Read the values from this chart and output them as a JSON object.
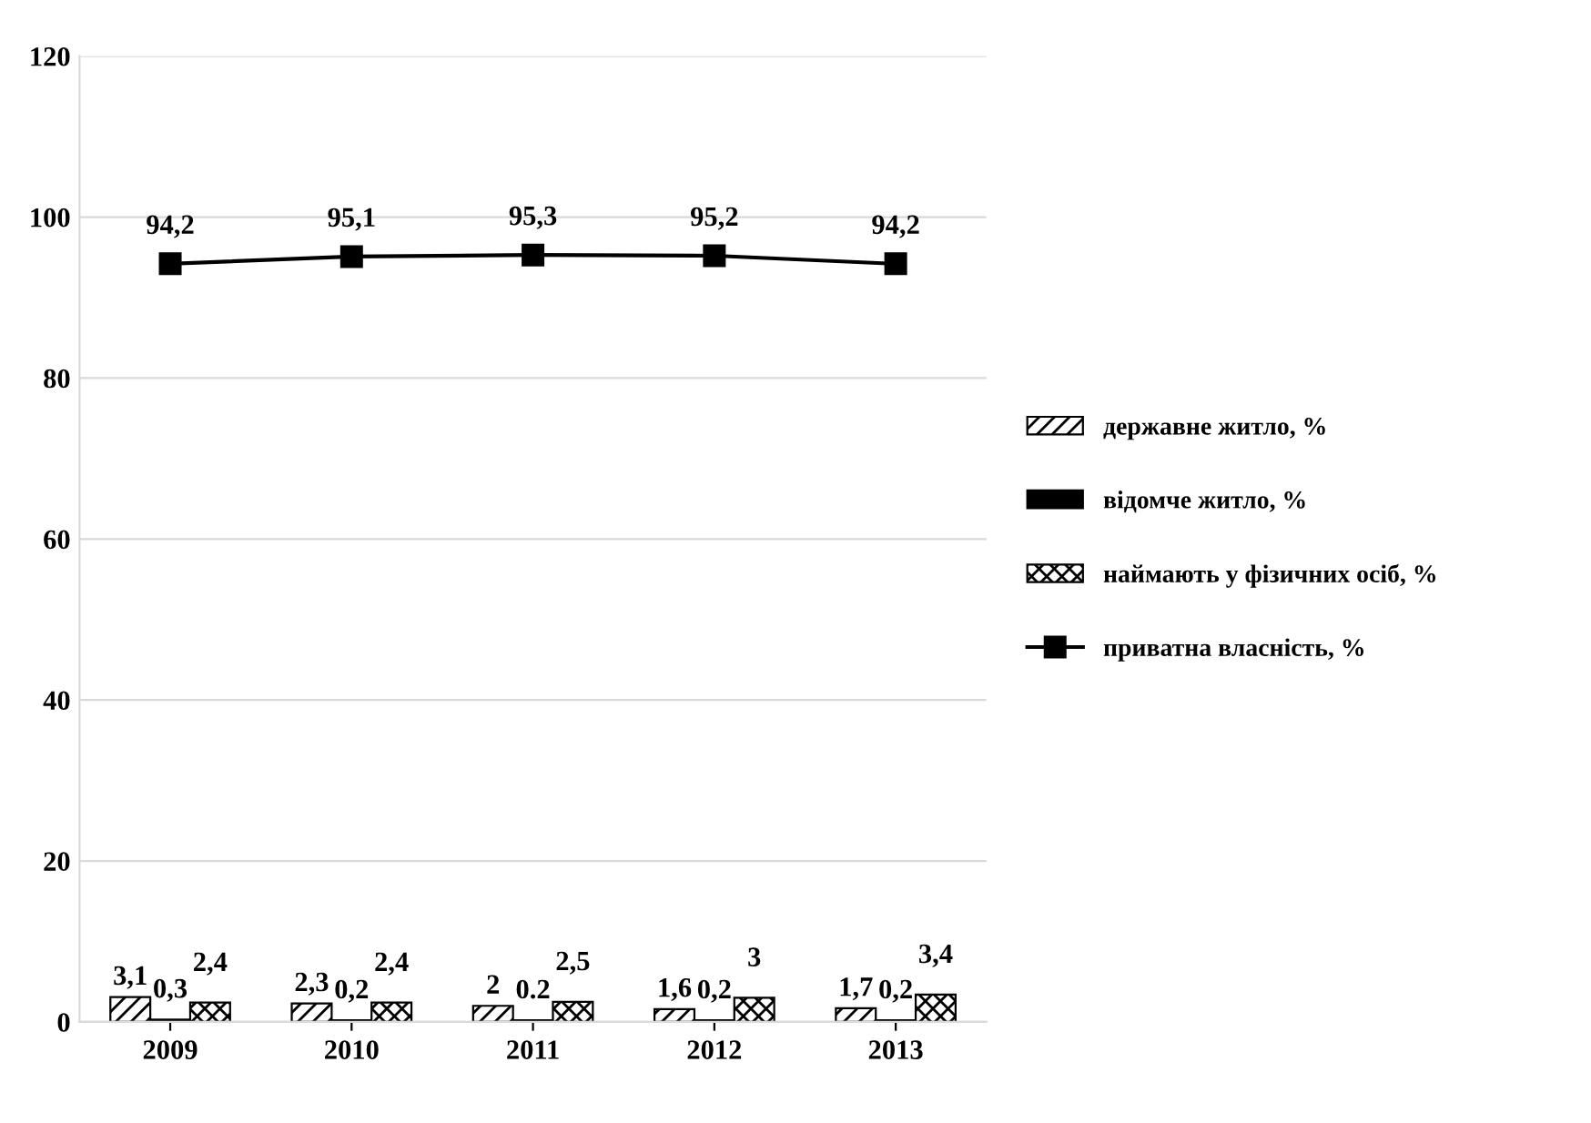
{
  "chart_data": {
    "type": "bar",
    "categories": [
      "2009",
      "2010",
      "2011",
      "2012",
      "2013"
    ],
    "series": [
      {
        "name": "державне житло, %",
        "color": "#000000",
        "values": [
          3.1,
          2.3,
          2,
          1.6,
          1.7
        ],
        "value_labels": [
          "3,1",
          "2,3",
          "2",
          "1,6",
          "1,7"
        ]
      },
      {
        "name": "відомче житло, %",
        "color": "#000000",
        "values": [
          0.3,
          0.2,
          0.2,
          0.2,
          0.2
        ],
        "value_labels": [
          "0,3",
          "0,2",
          "0.2",
          "0,2",
          "0,2"
        ]
      },
      {
        "name": "наймають у фізичних осіб, %",
        "color": "#000000",
        "values": [
          2.4,
          2.4,
          2.5,
          3,
          3.4
        ],
        "value_labels": [
          "2,4",
          "2,4",
          "2,5",
          "3",
          "3,4"
        ]
      },
      {
        "name": "приватна власність, %",
        "type": "line",
        "color": "#000000",
        "marker": "square",
        "values": [
          94.2,
          95.1,
          95.3,
          95.2,
          94.2
        ],
        "value_labels": [
          "94,2",
          "95,1",
          "95,3",
          "95,2",
          "94,2"
        ]
      }
    ],
    "ylim": [
      0,
      120
    ],
    "yticks": [
      0,
      20,
      40,
      60,
      80,
      100,
      120
    ],
    "grid": "y",
    "legend": "right"
  }
}
